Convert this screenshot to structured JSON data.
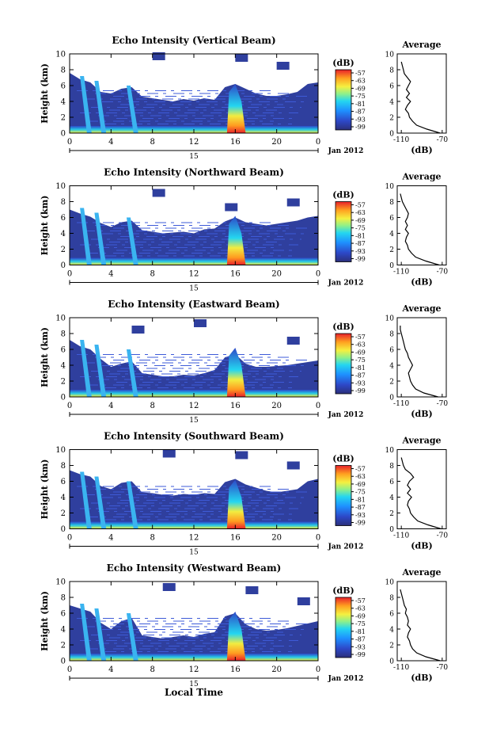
{
  "figure": {
    "time_label": "Local Time",
    "date_label": "Jan 2012",
    "day_label": "15"
  },
  "chart_data": [
    {
      "type": "heatmap",
      "title": "Echo Intensity (Vertical Beam)",
      "xlabel": "",
      "ylabel": "Height (km)",
      "x_ticks": [
        "0",
        "4",
        "8",
        "12",
        "16",
        "20",
        "0"
      ],
      "y_ticks": [
        "0",
        "2",
        "4",
        "6",
        "8",
        "10"
      ],
      "xlim": [
        0,
        24
      ],
      "ylim": [
        0,
        10
      ],
      "colorbar": {
        "label": "(dB)",
        "ticks": [
          "-57",
          "-63",
          "-69",
          "-75",
          "-81",
          "-87",
          "-93",
          "-99"
        ]
      },
      "echo_tops_km": [
        [
          0,
          7.6
        ],
        [
          1,
          6.8
        ],
        [
          2,
          6.4
        ],
        [
          3,
          5.2
        ],
        [
          4,
          5.0
        ],
        [
          5,
          5.6
        ],
        [
          6,
          5.8
        ],
        [
          7,
          4.6
        ],
        [
          8,
          4.4
        ],
        [
          9,
          4.2
        ],
        [
          10,
          4.0
        ],
        [
          11,
          4.3
        ],
        [
          12,
          4.1
        ],
        [
          13,
          4.4
        ],
        [
          14,
          4.2
        ],
        [
          15,
          5.8
        ],
        [
          16,
          6.2
        ],
        [
          17,
          5.6
        ],
        [
          18,
          5.0
        ],
        [
          19,
          4.7
        ],
        [
          20,
          4.7
        ],
        [
          21,
          4.9
        ],
        [
          22,
          5.2
        ],
        [
          23,
          6.2
        ],
        [
          24,
          6.4
        ]
      ],
      "upper_patch_km": [
        [
          8,
          9.6
        ],
        [
          16,
          9.4
        ],
        [
          20,
          8.4
        ]
      ],
      "avg_profile": {
        "title": "Average",
        "xlabel": "(dB)",
        "x_ticks": [
          "-110",
          "-70"
        ],
        "y_ticks": [
          "0",
          "2",
          "4",
          "6",
          "8",
          "10"
        ],
        "height_km": [
          0,
          0.5,
          1,
          1.5,
          2,
          2.5,
          3,
          3.5,
          4,
          4.5,
          5,
          5.5,
          6,
          6.5,
          7,
          7.5,
          8,
          8.5,
          9
        ],
        "db": [
          -72,
          -85,
          -95,
          -99,
          -102,
          -103,
          -106,
          -104,
          -101,
          -105,
          -102,
          -105,
          -103,
          -101,
          -104,
          -107,
          -108,
          -109,
          -110
        ]
      }
    },
    {
      "type": "heatmap",
      "title": "Echo Intensity (Northward Beam)",
      "xlabel": "",
      "ylabel": "Height (km)",
      "x_ticks": [
        "0",
        "4",
        "8",
        "12",
        "16",
        "20",
        "0"
      ],
      "y_ticks": [
        "0",
        "2",
        "4",
        "6",
        "8",
        "10"
      ],
      "xlim": [
        0,
        24
      ],
      "ylim": [
        0,
        10
      ],
      "colorbar": {
        "label": "(dB)",
        "ticks": [
          "-57",
          "-63",
          "-69",
          "-75",
          "-81",
          "-87",
          "-93",
          "-99"
        ]
      },
      "echo_tops_km": [
        [
          0,
          7.0
        ],
        [
          1,
          6.5
        ],
        [
          2,
          6.1
        ],
        [
          3,
          5.3
        ],
        [
          4,
          4.8
        ],
        [
          5,
          5.4
        ],
        [
          6,
          5.6
        ],
        [
          7,
          4.4
        ],
        [
          8,
          4.2
        ],
        [
          9,
          4.0
        ],
        [
          10,
          4.1
        ],
        [
          11,
          4.2
        ],
        [
          12,
          4.0
        ],
        [
          13,
          4.5
        ],
        [
          14,
          4.6
        ],
        [
          15,
          5.5
        ],
        [
          16,
          6.0
        ],
        [
          17,
          5.4
        ],
        [
          18,
          5.2
        ],
        [
          19,
          5.0
        ],
        [
          20,
          5.2
        ],
        [
          21,
          5.4
        ],
        [
          22,
          5.6
        ],
        [
          23,
          6.0
        ],
        [
          24,
          6.2
        ]
      ],
      "upper_patch_km": [
        [
          8,
          9.0
        ],
        [
          15,
          7.2
        ],
        [
          21,
          7.8
        ]
      ],
      "avg_profile": {
        "title": "Average",
        "xlabel": "(dB)",
        "x_ticks": [
          "-110",
          "-70"
        ],
        "y_ticks": [
          "0",
          "2",
          "4",
          "6",
          "8",
          "10"
        ],
        "height_km": [
          0,
          0.5,
          1,
          1.5,
          2,
          2.5,
          3,
          3.5,
          4,
          4.5,
          5,
          5.5,
          6,
          6.5,
          7,
          7.5,
          8,
          8.5,
          9
        ],
        "db": [
          -73,
          -86,
          -96,
          -100,
          -103,
          -104,
          -106,
          -105,
          -103,
          -106,
          -104,
          -106,
          -104,
          -103,
          -105,
          -107,
          -109,
          -110,
          -111
        ]
      }
    },
    {
      "type": "heatmap",
      "title": "Echo Intensity (Eastward Beam)",
      "xlabel": "",
      "ylabel": "Height (km)",
      "x_ticks": [
        "0",
        "4",
        "8",
        "12",
        "16",
        "20",
        "0"
      ],
      "y_ticks": [
        "0",
        "2",
        "4",
        "6",
        "8",
        "10"
      ],
      "xlim": [
        0,
        24
      ],
      "ylim": [
        0,
        10
      ],
      "colorbar": {
        "label": "(dB)",
        "ticks": [
          "-57",
          "-63",
          "-69",
          "-75",
          "-81",
          "-87",
          "-93",
          "-99"
        ]
      },
      "echo_tops_km": [
        [
          0,
          7.2
        ],
        [
          1,
          6.4
        ],
        [
          2,
          6.0
        ],
        [
          3,
          4.8
        ],
        [
          4,
          3.8
        ],
        [
          5,
          4.2
        ],
        [
          6,
          4.5
        ],
        [
          7,
          3.0
        ],
        [
          8,
          2.8
        ],
        [
          9,
          2.6
        ],
        [
          10,
          2.6
        ],
        [
          11,
          2.8
        ],
        [
          12,
          2.7
        ],
        [
          13,
          3.0
        ],
        [
          14,
          3.4
        ],
        [
          15,
          5.0
        ],
        [
          16,
          5.4
        ],
        [
          17,
          4.2
        ],
        [
          18,
          3.8
        ],
        [
          19,
          3.8
        ],
        [
          20,
          3.9
        ],
        [
          21,
          4.0
        ],
        [
          22,
          4.2
        ],
        [
          23,
          4.4
        ],
        [
          24,
          4.6
        ]
      ],
      "upper_patch_km": [
        [
          6,
          8.4
        ],
        [
          12,
          9.2
        ],
        [
          21,
          7.0
        ]
      ],
      "avg_profile": {
        "title": "Average",
        "xlabel": "(dB)",
        "x_ticks": [
          "-110",
          "-70"
        ],
        "y_ticks": [
          "0",
          "2",
          "4",
          "6",
          "8",
          "10"
        ],
        "height_km": [
          0,
          0.5,
          1,
          1.5,
          2,
          2.5,
          3,
          3.5,
          4,
          4.5,
          5,
          5.5,
          6,
          6.5,
          7,
          7.5,
          8,
          8.5,
          9
        ],
        "db": [
          -74,
          -88,
          -96,
          -99,
          -101,
          -102,
          -103,
          -101,
          -99,
          -101,
          -103,
          -104,
          -106,
          -107,
          -108,
          -109,
          -110,
          -111,
          -111
        ]
      }
    },
    {
      "type": "heatmap",
      "title": "Echo Intensity (Southward Beam)",
      "xlabel": "",
      "ylabel": "Height (km)",
      "x_ticks": [
        "0",
        "4",
        "8",
        "12",
        "16",
        "20",
        "0"
      ],
      "y_ticks": [
        "0",
        "2",
        "4",
        "6",
        "8",
        "10"
      ],
      "xlim": [
        0,
        24
      ],
      "ylim": [
        0,
        10
      ],
      "colorbar": {
        "label": "(dB)",
        "ticks": [
          "-57",
          "-63",
          "-69",
          "-75",
          "-81",
          "-87",
          "-93",
          "-99"
        ]
      },
      "echo_tops_km": [
        [
          0,
          7.4
        ],
        [
          1,
          6.9
        ],
        [
          2,
          6.6
        ],
        [
          3,
          5.4
        ],
        [
          4,
          5.0
        ],
        [
          5,
          5.8
        ],
        [
          6,
          6.0
        ],
        [
          7,
          4.6
        ],
        [
          8,
          4.5
        ],
        [
          9,
          4.3
        ],
        [
          10,
          4.2
        ],
        [
          11,
          4.4
        ],
        [
          12,
          4.3
        ],
        [
          13,
          4.5
        ],
        [
          14,
          4.4
        ],
        [
          15,
          5.9
        ],
        [
          16,
          6.3
        ],
        [
          17,
          5.6
        ],
        [
          18,
          5.2
        ],
        [
          19,
          4.8
        ],
        [
          20,
          4.6
        ],
        [
          21,
          4.8
        ],
        [
          22,
          5.0
        ],
        [
          23,
          6.0
        ],
        [
          24,
          6.3
        ]
      ],
      "upper_patch_km": [
        [
          9,
          9.4
        ],
        [
          16,
          9.2
        ],
        [
          21,
          7.9
        ]
      ],
      "avg_profile": {
        "title": "Average",
        "xlabel": "(dB)",
        "x_ticks": [
          "-110",
          "-70"
        ],
        "y_ticks": [
          "0",
          "2",
          "4",
          "6",
          "8",
          "10"
        ],
        "height_km": [
          0,
          0.5,
          1,
          1.5,
          2,
          2.5,
          3,
          3.5,
          4,
          4.5,
          5,
          5.5,
          6,
          6.5,
          7,
          7.5,
          8,
          8.5,
          9
        ],
        "db": [
          -71,
          -84,
          -94,
          -98,
          -101,
          -102,
          -104,
          -103,
          -100,
          -104,
          -101,
          -104,
          -102,
          -98,
          -101,
          -106,
          -108,
          -109,
          -110
        ]
      }
    },
    {
      "type": "heatmap",
      "title": "Echo Intensity (Westward Beam)",
      "xlabel": "Local Time",
      "ylabel": "Height (km)",
      "x_ticks": [
        "0",
        "4",
        "8",
        "12",
        "16",
        "20",
        "0"
      ],
      "y_ticks": [
        "0",
        "2",
        "4",
        "6",
        "8",
        "10"
      ],
      "xlim": [
        0,
        24
      ],
      "ylim": [
        0,
        10
      ],
      "colorbar": {
        "label": "(dB)",
        "ticks": [
          "-57",
          "-63",
          "-69",
          "-75",
          "-81",
          "-87",
          "-93",
          "-99"
        ]
      },
      "echo_tops_km": [
        [
          0,
          7.0
        ],
        [
          1,
          6.6
        ],
        [
          2,
          6.2
        ],
        [
          3,
          4.8
        ],
        [
          4,
          4.0
        ],
        [
          5,
          5.0
        ],
        [
          6,
          5.4
        ],
        [
          7,
          3.2
        ],
        [
          8,
          3.0
        ],
        [
          9,
          2.8
        ],
        [
          10,
          3.0
        ],
        [
          11,
          3.2
        ],
        [
          12,
          3.0
        ],
        [
          13,
          3.4
        ],
        [
          14,
          3.6
        ],
        [
          15,
          5.6
        ],
        [
          16,
          6.0
        ],
        [
          17,
          4.6
        ],
        [
          18,
          4.0
        ],
        [
          19,
          3.8
        ],
        [
          20,
          3.9
        ],
        [
          21,
          4.1
        ],
        [
          22,
          4.4
        ],
        [
          23,
          4.7
        ],
        [
          24,
          5.0
        ]
      ],
      "upper_patch_km": [
        [
          9,
          9.2
        ],
        [
          17,
          8.8
        ],
        [
          22,
          7.4
        ]
      ],
      "avg_profile": {
        "title": "Average",
        "xlabel": "(dB)",
        "x_ticks": [
          "-110",
          "-70"
        ],
        "y_ticks": [
          "0",
          "2",
          "4",
          "6",
          "8",
          "10"
        ],
        "height_km": [
          0,
          0.5,
          1,
          1.5,
          2,
          2.5,
          3,
          3.5,
          4,
          4.5,
          5,
          5.5,
          6,
          6.5,
          7,
          7.5,
          8,
          8.5,
          9
        ],
        "db": [
          -72,
          -86,
          -95,
          -99,
          -101,
          -102,
          -104,
          -103,
          -101,
          -104,
          -103,
          -104,
          -106,
          -105,
          -107,
          -108,
          -109,
          -110,
          -111
        ]
      }
    }
  ]
}
